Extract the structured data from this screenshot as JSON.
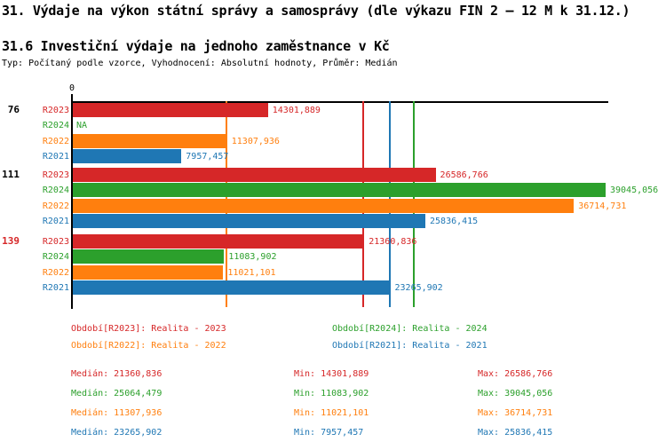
{
  "header": {
    "title": "31. Výdaje na výkon státní správy a samosprávy (dle výkazu FIN 2 – 12 M k 31.12.)",
    "subtitle": "31.6 Investiční výdaje na jednoho zaměstnance v Kč",
    "meta": "Typ: Počítaný podle vzorce, Vyhodnocení: Absolutní hodnoty, Průměr: Medián"
  },
  "colors": {
    "R2023": "#d62728",
    "R2024": "#2ca02c",
    "R2022": "#ff7f0e",
    "R2021": "#1f77b4",
    "axis": "#000000",
    "highlight_group": "#d62728"
  },
  "chart_data": {
    "type": "bar",
    "orientation": "horizontal",
    "title": "31.6 Investiční výdaje na jednoho zaměstnance v Kč",
    "value_unit": "Kč",
    "axis_zero_label": "0",
    "xlim": [
      0,
      39305
    ],
    "series_order": [
      "R2023",
      "R2024",
      "R2022",
      "R2021"
    ],
    "groups": [
      {
        "label": "76",
        "highlight": false,
        "bars": [
          {
            "series": "R2023",
            "value": 14301.889,
            "label": "14301,889"
          },
          {
            "series": "R2024",
            "value": null,
            "label": "NA"
          },
          {
            "series": "R2022",
            "value": 11307.936,
            "label": "11307,936"
          },
          {
            "series": "R2021",
            "value": 7957.457,
            "label": "7957,457"
          }
        ]
      },
      {
        "label": "111",
        "highlight": false,
        "bars": [
          {
            "series": "R2023",
            "value": 26586.766,
            "label": "26586,766"
          },
          {
            "series": "R2024",
            "value": 39045.056,
            "label": "39045,056"
          },
          {
            "series": "R2022",
            "value": 36714.731,
            "label": "36714,731"
          },
          {
            "series": "R2021",
            "value": 25836.415,
            "label": "25836,415"
          }
        ]
      },
      {
        "label": "139",
        "highlight": true,
        "bars": [
          {
            "series": "R2023",
            "value": 21360.836,
            "label": "21360,836"
          },
          {
            "series": "R2024",
            "value": 11083.902,
            "label": "11083,902"
          },
          {
            "series": "R2022",
            "value": 11021.101,
            "label": "11021,101"
          },
          {
            "series": "R2021",
            "value": 23265.902,
            "label": "23265,902"
          }
        ]
      }
    ],
    "median_lines": [
      {
        "series": "R2022",
        "value": 11307.936
      },
      {
        "series": "R2023",
        "value": 21360.836
      },
      {
        "series": "R2021",
        "value": 23265.902
      },
      {
        "series": "R2024",
        "value": 25064.479
      }
    ]
  },
  "legend": {
    "rows": [
      [
        {
          "series": "R2023",
          "text": "Období[R2023]: Realita - 2023"
        },
        {
          "series": "R2024",
          "text": "Období[R2024]: Realita - 2024"
        }
      ],
      [
        {
          "series": "R2022",
          "text": "Období[R2022]: Realita - 2022"
        },
        {
          "series": "R2021",
          "text": "Období[R2021]: Realita - 2021"
        }
      ]
    ]
  },
  "stats": [
    {
      "series": "R2023",
      "median": "Medián: 21360,836",
      "min": "Min: 14301,889",
      "max": "Max: 26586,766"
    },
    {
      "series": "R2024",
      "median": "Medián: 25064,479",
      "min": "Min: 11083,902",
      "max": "Max: 39045,056"
    },
    {
      "series": "R2022",
      "median": "Medián: 11307,936",
      "min": "Min: 11021,101",
      "max": "Max: 36714,731"
    },
    {
      "series": "R2021",
      "median": "Medián: 23265,902",
      "min": "Min: 7957,457",
      "max": "Max: 25836,415"
    }
  ]
}
